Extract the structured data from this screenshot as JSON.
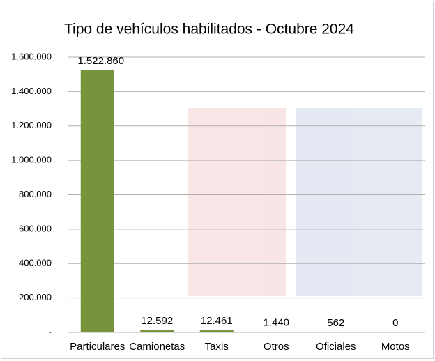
{
  "chart_data": {
    "type": "bar",
    "title": "Tipo de vehículos habilitados - Octubre 2024",
    "categories": [
      "Particulares",
      "Camionetas",
      "Taxis",
      "Otros",
      "Oficiales",
      "Motos"
    ],
    "values": [
      1522860,
      12592,
      12461,
      1440,
      562,
      0
    ],
    "value_labels": [
      "1.522.860",
      "12.592",
      "12.461",
      "1.440",
      "562",
      "0"
    ],
    "color": "#77933c",
    "ylim": [
      0,
      1600000
    ],
    "yticks": [
      {
        "value": 0,
        "label": "-"
      },
      {
        "value": 200000,
        "label": "200.000"
      },
      {
        "value": 400000,
        "label": "400.000"
      },
      {
        "value": 600000,
        "label": "600.000"
      },
      {
        "value": 800000,
        "label": "800.000"
      },
      {
        "value": 1000000,
        "label": "1.000.000"
      },
      {
        "value": 1200000,
        "label": "1.200.000"
      },
      {
        "value": 1400000,
        "label": "1.400.000"
      },
      {
        "value": 1600000,
        "label": "1.600.000"
      }
    ],
    "grid": true
  }
}
